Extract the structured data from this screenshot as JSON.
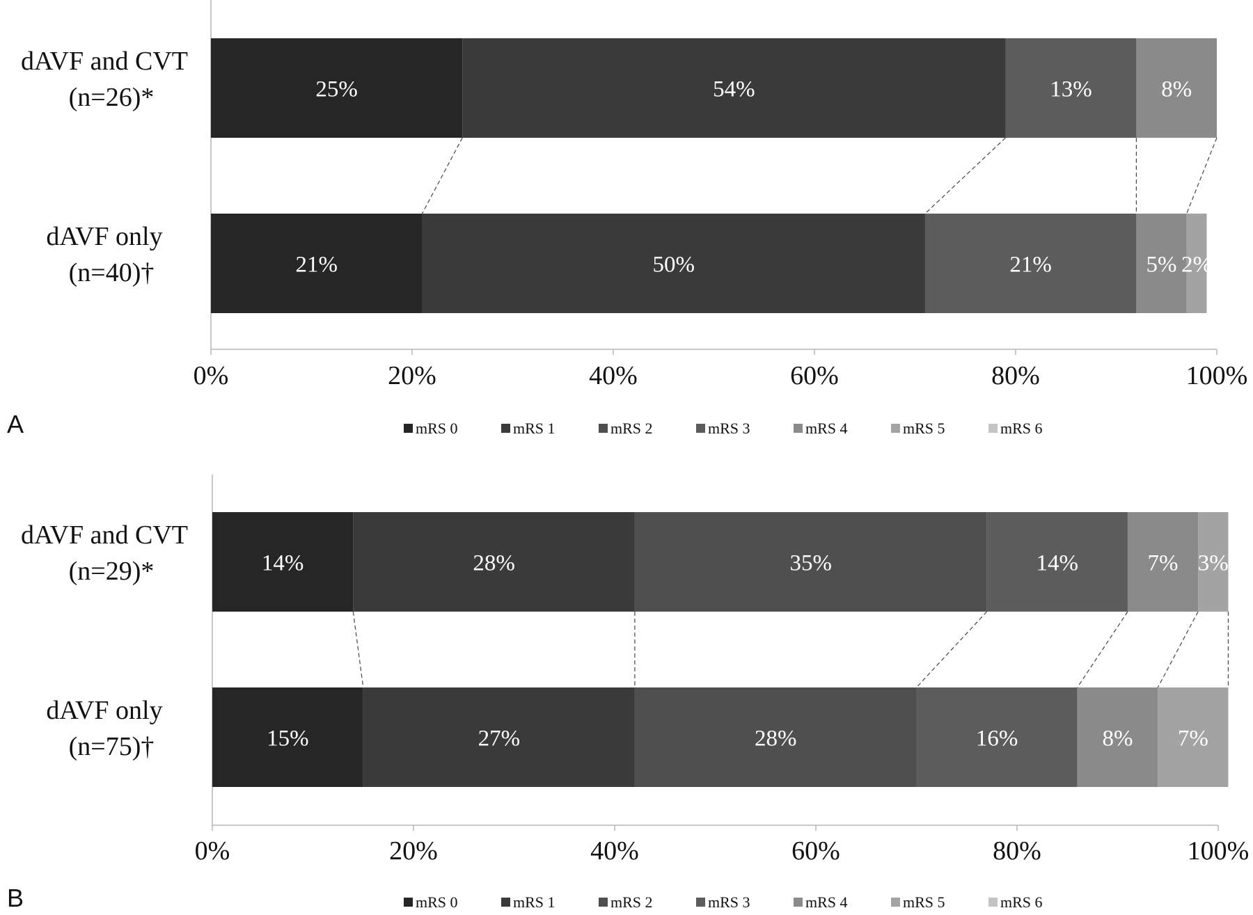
{
  "figure": {
    "legend_items": [
      "mRS 0",
      "mRS 1",
      "mRS 2",
      "mRS 3",
      "mRS 4",
      "mRS 5",
      "mRS 6"
    ],
    "legend_colors": [
      "#262626",
      "#3a3a3a",
      "#4f4f4f",
      "#5c5c5c",
      "#8a8a8a",
      "#a3a3a3",
      "#c4c4c4"
    ]
  },
  "chart_data": [
    {
      "type": "bar",
      "orientation": "horizontal",
      "stacked": true,
      "panel_label": "A",
      "categories": [
        [
          "dAVF and CVT",
          "(n=26)*"
        ],
        [
          "dAVF only",
          "(n=40)†"
        ]
      ],
      "xlim": [
        0,
        100
      ],
      "x_ticks": [
        "0%",
        "20%",
        "40%",
        "60%",
        "80%",
        "100%"
      ],
      "grid": false,
      "legend_position": "bottom",
      "series": [
        {
          "name": "mRS 0",
          "values": [
            25,
            21
          ],
          "labels": [
            "25%",
            "21%"
          ]
        },
        {
          "name": "mRS 1",
          "values": [
            54,
            50
          ],
          "labels": [
            "54%",
            "50%"
          ]
        },
        {
          "name": "mRS 2",
          "values": [
            0,
            0
          ],
          "labels": [
            "",
            ""
          ]
        },
        {
          "name": "mRS 3",
          "values": [
            13,
            21
          ],
          "labels": [
            "13%",
            "21%"
          ]
        },
        {
          "name": "mRS 4",
          "values": [
            8,
            5
          ],
          "labels": [
            "8%",
            "5%"
          ]
        },
        {
          "name": "mRS 5",
          "values": [
            0,
            2
          ],
          "labels": [
            "",
            "2%"
          ]
        },
        {
          "name": "mRS 6",
          "values": [
            0,
            0
          ],
          "labels": [
            "",
            ""
          ]
        }
      ]
    },
    {
      "type": "bar",
      "orientation": "horizontal",
      "stacked": true,
      "panel_label": "B",
      "categories": [
        [
          "dAVF and CVT",
          "(n=29)*"
        ],
        [
          "dAVF only",
          "(n=75)†"
        ]
      ],
      "xlim": [
        0,
        100
      ],
      "x_ticks": [
        "0%",
        "20%",
        "40%",
        "60%",
        "80%",
        "100%"
      ],
      "grid": false,
      "legend_position": "bottom",
      "series": [
        {
          "name": "mRS 0",
          "values": [
            14,
            15
          ],
          "labels": [
            "14%",
            "15%"
          ]
        },
        {
          "name": "mRS 1",
          "values": [
            28,
            27
          ],
          "labels": [
            "28%",
            "27%"
          ]
        },
        {
          "name": "mRS 2",
          "values": [
            35,
            28
          ],
          "labels": [
            "35%",
            "28%"
          ]
        },
        {
          "name": "mRS 3",
          "values": [
            14,
            16
          ],
          "labels": [
            "14%",
            "16%"
          ]
        },
        {
          "name": "mRS 4",
          "values": [
            7,
            8
          ],
          "labels": [
            "7%",
            "8%"
          ]
        },
        {
          "name": "mRS 5",
          "values": [
            3,
            7
          ],
          "labels": [
            "3%",
            "7%"
          ]
        },
        {
          "name": "mRS 6",
          "values": [
            0,
            0
          ],
          "labels": [
            "",
            ""
          ]
        }
      ]
    }
  ]
}
